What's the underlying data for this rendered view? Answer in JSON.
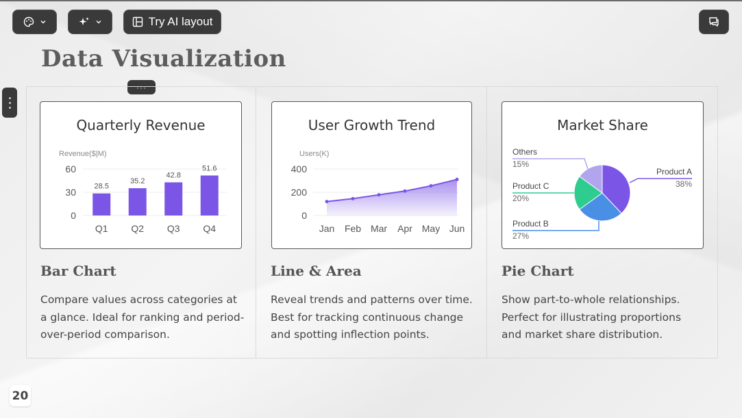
{
  "toolbar": {
    "ai_layout_label": "Try AI layout"
  },
  "slide": {
    "title": "Data Visualization",
    "page_number": "20"
  },
  "columns": [
    {
      "card_title": "Quarterly Revenue",
      "heading": "Bar Chart",
      "description": "Compare values across categories at a glance. Ideal for ranking and period-over-period comparison."
    },
    {
      "card_title": "User Growth Trend",
      "heading": "Line & Area",
      "description": "Reveal trends and patterns over time. Best for tracking continuous change and spotting inflection points."
    },
    {
      "card_title": "Market Share",
      "heading": "Pie Chart",
      "description": "Show part-to-whole relationships. Perfect for illustrating proportions and market share distribution."
    }
  ],
  "chart_data": [
    {
      "type": "bar",
      "title": "Quarterly Revenue",
      "ylabel": "Revenue($|M)",
      "categories": [
        "Q1",
        "Q2",
        "Q3",
        "Q4"
      ],
      "values": [
        28.5,
        35.2,
        42.8,
        51.6
      ],
      "ylim": [
        0,
        60
      ],
      "yticks": [
        0,
        30,
        60
      ],
      "color": "#7b55e6"
    },
    {
      "type": "area",
      "title": "User Growth Trend",
      "ylabel": "Users(K)",
      "categories": [
        "Jan",
        "Feb",
        "Mar",
        "Apr",
        "May",
        "Jun"
      ],
      "values": [
        120,
        145,
        178,
        210,
        255,
        310
      ],
      "ylim": [
        0,
        400
      ],
      "yticks": [
        0,
        200,
        400
      ],
      "color": "#7b55e6"
    },
    {
      "type": "pie",
      "title": "Market Share",
      "slices": [
        {
          "name": "Product A",
          "value": 38,
          "label": "38%",
          "color": "#7b55e6"
        },
        {
          "name": "Product B",
          "value": 27,
          "label": "27%",
          "color": "#4a8fe6"
        },
        {
          "name": "Product C",
          "value": 20,
          "label": "20%",
          "color": "#2ecc8f"
        },
        {
          "name": "Others",
          "value": 15,
          "label": "15%",
          "color": "#b3a4ee"
        }
      ]
    }
  ]
}
